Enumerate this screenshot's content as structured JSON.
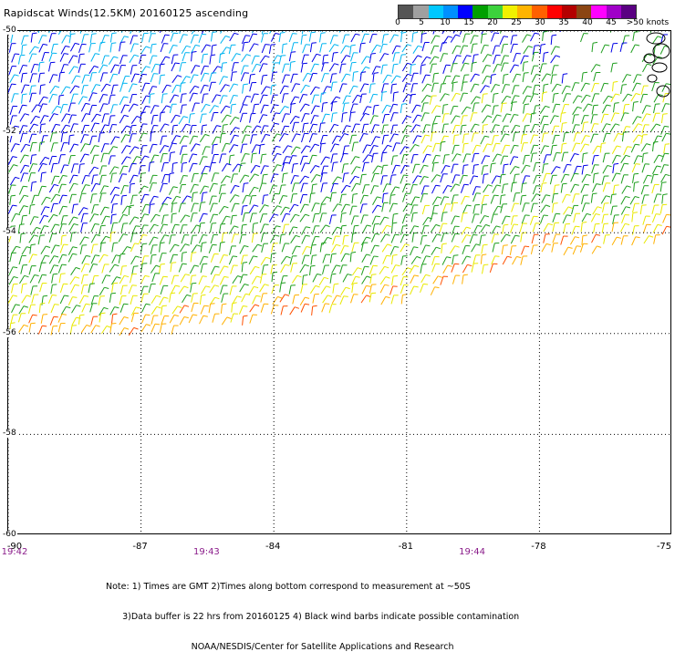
{
  "title": "Rapidscat Winds(12.5KM) 20160125 ascending",
  "legend": {
    "colors": [
      "#555555",
      "#a0a0a0",
      "#00c8ff",
      "#0090ff",
      "#0000ff",
      "#00a000",
      "#3cd23c",
      "#f0f000",
      "#ffb400",
      "#ff6000",
      "#ff0000",
      "#b40000",
      "#8b4513",
      "#ff00ff",
      "#a000c8",
      "#5a0082"
    ],
    "labels": [
      {
        "text": "0",
        "value": 0
      },
      {
        "text": "5",
        "value": 5
      },
      {
        "text": "10",
        "value": 10
      },
      {
        "text": "15",
        "value": 15
      },
      {
        "text": "20",
        "value": 20
      },
      {
        "text": "25",
        "value": 25
      },
      {
        "text": "30",
        "value": 30
      },
      {
        "text": "35",
        "value": 35
      },
      {
        "text": "40",
        "value": 40
      },
      {
        "text": "45",
        "value": 45
      },
      {
        "text": ">50 knots",
        "value": 50
      }
    ]
  },
  "map": {
    "lon_range": [
      -90,
      -75
    ],
    "lat_range": [
      -50,
      -60
    ],
    "lat_labels": [
      "-50",
      "-52",
      "-54",
      "-56",
      "-58",
      "-60"
    ],
    "lon_labels": [
      "-90",
      "-87",
      "-84",
      "-81",
      "-78",
      "-75"
    ],
    "time_labels": [
      {
        "text": "19:42",
        "lon": -90
      },
      {
        "text": "19:43",
        "lon": -85.5
      },
      {
        "text": "19:44",
        "lon": -79.5
      }
    ]
  },
  "notes": [
    "Note: 1) Times are GMT 2)Times along bottom correspond to measurement at ~50S",
    "      3)Data buffer is 22 hrs from 20160125 4) Black wind barbs indicate possible contamination",
    "                               NOAA/NESDIS/Center for Satellite Applications and Research"
  ]
}
